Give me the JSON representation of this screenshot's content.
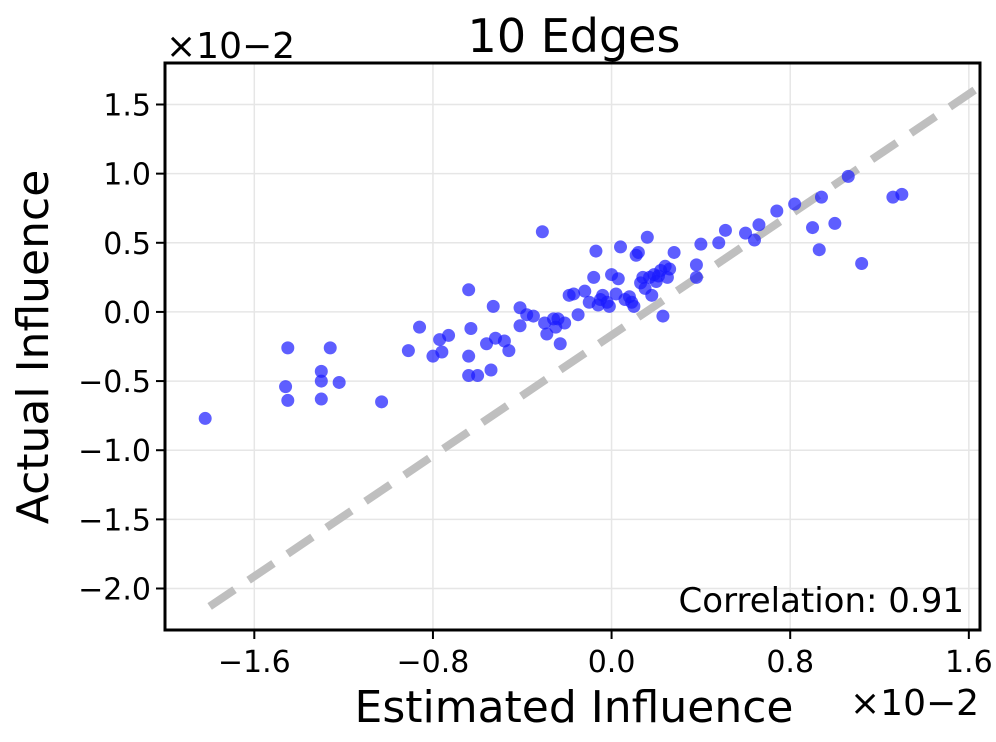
{
  "chart_data": {
    "type": "scatter",
    "title": "10 Edges",
    "xlabel": "Estimated Influence",
    "ylabel": "Actual Influence",
    "x_multiplier": "×10−2",
    "y_multiplier": "×10−2",
    "xlim": [
      -2.0,
      1.65
    ],
    "ylim": [
      -2.3,
      1.8
    ],
    "xticks": [
      -1.6,
      -0.8,
      0.0,
      0.8,
      1.6
    ],
    "xtick_labels": [
      "−1.6",
      "−0.8",
      "0.0",
      "0.8",
      "1.6"
    ],
    "yticks": [
      -2.0,
      -1.5,
      -1.0,
      -0.5,
      0.0,
      0.5,
      1.0,
      1.5
    ],
    "ytick_labels": [
      "−2.0",
      "−1.5",
      "−1.0",
      "−0.5",
      "0.0",
      "0.5",
      "1.0",
      "1.5"
    ],
    "grid": true,
    "annotation": "Correlation: 0.91",
    "point_color": "#1a1aff",
    "reference_line_color": "#bfbfbf",
    "reference_line": {
      "x": [
        -1.8,
        1.65
      ],
      "y": [
        -2.13,
        1.63
      ]
    },
    "points": [
      {
        "x": -1.82,
        "y": -0.77
      },
      {
        "x": -1.45,
        "y": -0.26
      },
      {
        "x": -1.46,
        "y": -0.54
      },
      {
        "x": -1.45,
        "y": -0.64
      },
      {
        "x": -1.3,
        "y": -0.43
      },
      {
        "x": -1.3,
        "y": -0.5
      },
      {
        "x": -1.3,
        "y": -0.63
      },
      {
        "x": -1.26,
        "y": -0.26
      },
      {
        "x": -1.22,
        "y": -0.51
      },
      {
        "x": -1.03,
        "y": -0.65
      },
      {
        "x": -0.91,
        "y": -0.28
      },
      {
        "x": -0.86,
        "y": -0.11
      },
      {
        "x": -0.8,
        "y": -0.32
      },
      {
        "x": -0.77,
        "y": -0.2
      },
      {
        "x": -0.76,
        "y": -0.29
      },
      {
        "x": -0.73,
        "y": -0.17
      },
      {
        "x": -0.64,
        "y": 0.16
      },
      {
        "x": -0.64,
        "y": -0.32
      },
      {
        "x": -0.64,
        "y": -0.46
      },
      {
        "x": -0.63,
        "y": -0.12
      },
      {
        "x": -0.6,
        "y": -0.46
      },
      {
        "x": -0.56,
        "y": -0.23
      },
      {
        "x": -0.54,
        "y": -0.42
      },
      {
        "x": -0.53,
        "y": 0.04
      },
      {
        "x": -0.52,
        "y": -0.19
      },
      {
        "x": -0.48,
        "y": -0.21
      },
      {
        "x": -0.46,
        "y": -0.28
      },
      {
        "x": -0.41,
        "y": 0.03
      },
      {
        "x": -0.41,
        "y": -0.1
      },
      {
        "x": -0.38,
        "y": -0.02
      },
      {
        "x": -0.35,
        "y": -0.03
      },
      {
        "x": -0.31,
        "y": 0.58
      },
      {
        "x": -0.3,
        "y": -0.08
      },
      {
        "x": -0.29,
        "y": -0.16
      },
      {
        "x": -0.26,
        "y": -0.05
      },
      {
        "x": -0.25,
        "y": -0.11
      },
      {
        "x": -0.24,
        "y": -0.05
      },
      {
        "x": -0.23,
        "y": -0.23
      },
      {
        "x": -0.21,
        "y": -0.08
      },
      {
        "x": -0.19,
        "y": 0.12
      },
      {
        "x": -0.17,
        "y": 0.13
      },
      {
        "x": -0.15,
        "y": -0.02
      },
      {
        "x": -0.12,
        "y": 0.15
      },
      {
        "x": -0.1,
        "y": 0.07
      },
      {
        "x": -0.08,
        "y": 0.25
      },
      {
        "x": -0.07,
        "y": 0.44
      },
      {
        "x": -0.06,
        "y": 0.05
      },
      {
        "x": -0.05,
        "y": 0.09
      },
      {
        "x": -0.04,
        "y": 0.12
      },
      {
        "x": -0.02,
        "y": 0.07
      },
      {
        "x": -0.01,
        "y": 0.04
      },
      {
        "x": 0.0,
        "y": 0.27
      },
      {
        "x": 0.02,
        "y": 0.13
      },
      {
        "x": 0.03,
        "y": 0.24
      },
      {
        "x": 0.04,
        "y": 0.47
      },
      {
        "x": 0.06,
        "y": 0.09
      },
      {
        "x": 0.08,
        "y": 0.11
      },
      {
        "x": 0.09,
        "y": 0.07
      },
      {
        "x": 0.1,
        "y": 0.04
      },
      {
        "x": 0.11,
        "y": 0.41
      },
      {
        "x": 0.12,
        "y": 0.43
      },
      {
        "x": 0.13,
        "y": 0.21
      },
      {
        "x": 0.14,
        "y": 0.25
      },
      {
        "x": 0.15,
        "y": 0.17
      },
      {
        "x": 0.16,
        "y": 0.54
      },
      {
        "x": 0.17,
        "y": 0.25
      },
      {
        "x": 0.18,
        "y": 0.12
      },
      {
        "x": 0.19,
        "y": 0.27
      },
      {
        "x": 0.2,
        "y": 0.22
      },
      {
        "x": 0.21,
        "y": 0.26
      },
      {
        "x": 0.22,
        "y": 0.3
      },
      {
        "x": 0.23,
        "y": -0.03
      },
      {
        "x": 0.24,
        "y": 0.33
      },
      {
        "x": 0.25,
        "y": 0.25
      },
      {
        "x": 0.26,
        "y": 0.31
      },
      {
        "x": 0.28,
        "y": 0.43
      },
      {
        "x": 0.38,
        "y": 0.34
      },
      {
        "x": 0.38,
        "y": 0.25
      },
      {
        "x": 0.4,
        "y": 0.49
      },
      {
        "x": 0.48,
        "y": 0.5
      },
      {
        "x": 0.51,
        "y": 0.59
      },
      {
        "x": 0.6,
        "y": 0.57
      },
      {
        "x": 0.64,
        "y": 0.52
      },
      {
        "x": 0.66,
        "y": 0.63
      },
      {
        "x": 0.74,
        "y": 0.73
      },
      {
        "x": 0.82,
        "y": 0.78
      },
      {
        "x": 0.9,
        "y": 0.61
      },
      {
        "x": 0.93,
        "y": 0.45
      },
      {
        "x": 0.94,
        "y": 0.83
      },
      {
        "x": 1.0,
        "y": 0.64
      },
      {
        "x": 1.06,
        "y": 0.98
      },
      {
        "x": 1.12,
        "y": 0.35
      },
      {
        "x": 1.26,
        "y": 0.83
      },
      {
        "x": 1.3,
        "y": 0.85
      }
    ]
  }
}
